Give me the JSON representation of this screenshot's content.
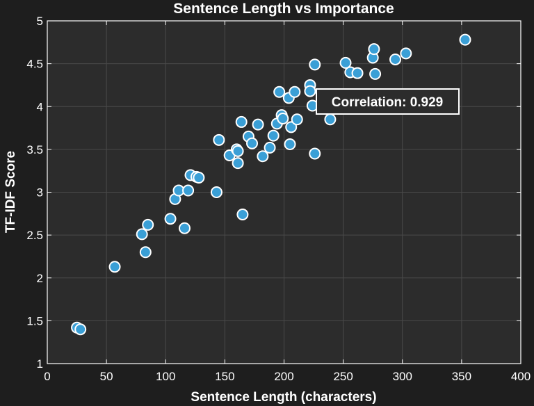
{
  "chart_data": {
    "type": "scatter",
    "title": "Sentence Length vs Importance",
    "xlabel": "Sentence Length (characters)",
    "ylabel": "TF-IDF Score",
    "xlim": [
      0,
      400
    ],
    "ylim": [
      1,
      5
    ],
    "xticks": [
      0,
      50,
      100,
      150,
      200,
      250,
      300,
      350,
      400
    ],
    "xtick_labels": [
      "0",
      "50",
      "100",
      "150",
      "200",
      "250",
      "300",
      "350",
      "400"
    ],
    "yticks": [
      1,
      1.5,
      2,
      2.5,
      3,
      3.5,
      4,
      4.5,
      5
    ],
    "ytick_labels": [
      "1",
      "1.5",
      "2",
      "2.5",
      "3",
      "3.5",
      "4",
      "4.5",
      "5"
    ],
    "grid": true,
    "annotation": "Correlation: 0.929",
    "colors": {
      "background": "#1e1e1e",
      "plot_background": "#2c2c2c",
      "grid": "#4a4a4a",
      "marker_fill": "#3a9fd6",
      "marker_edge": "#ffffff",
      "text": "#ffffff",
      "annotation_box": "#2c2c2c"
    },
    "points": [
      {
        "x": 25,
        "y": 1.42
      },
      {
        "x": 28,
        "y": 1.4
      },
      {
        "x": 57,
        "y": 2.13
      },
      {
        "x": 80,
        "y": 2.51
      },
      {
        "x": 83,
        "y": 2.3
      },
      {
        "x": 85,
        "y": 2.62
      },
      {
        "x": 104,
        "y": 2.69
      },
      {
        "x": 108,
        "y": 2.92
      },
      {
        "x": 111,
        "y": 3.02
      },
      {
        "x": 116,
        "y": 2.58
      },
      {
        "x": 119,
        "y": 3.02
      },
      {
        "x": 121,
        "y": 3.2
      },
      {
        "x": 126,
        "y": 3.18
      },
      {
        "x": 128,
        "y": 3.17
      },
      {
        "x": 143,
        "y": 3.0
      },
      {
        "x": 145,
        "y": 3.61
      },
      {
        "x": 154,
        "y": 3.43
      },
      {
        "x": 160,
        "y": 3.5
      },
      {
        "x": 161,
        "y": 3.34
      },
      {
        "x": 161,
        "y": 3.48
      },
      {
        "x": 164,
        "y": 3.82
      },
      {
        "x": 165,
        "y": 2.74
      },
      {
        "x": 170,
        "y": 3.65
      },
      {
        "x": 173,
        "y": 3.57
      },
      {
        "x": 178,
        "y": 3.79
      },
      {
        "x": 182,
        "y": 3.42
      },
      {
        "x": 188,
        "y": 3.52
      },
      {
        "x": 191,
        "y": 3.66
      },
      {
        "x": 194,
        "y": 3.8
      },
      {
        "x": 196,
        "y": 4.17
      },
      {
        "x": 198,
        "y": 3.9
      },
      {
        "x": 199,
        "y": 3.86
      },
      {
        "x": 204,
        "y": 4.1
      },
      {
        "x": 205,
        "y": 3.56
      },
      {
        "x": 206,
        "y": 3.76
      },
      {
        "x": 209,
        "y": 4.17
      },
      {
        "x": 211,
        "y": 3.85
      },
      {
        "x": 222,
        "y": 4.25
      },
      {
        "x": 222,
        "y": 4.18
      },
      {
        "x": 224,
        "y": 4.01
      },
      {
        "x": 226,
        "y": 4.49
      },
      {
        "x": 226,
        "y": 3.45
      },
      {
        "x": 239,
        "y": 3.85
      },
      {
        "x": 252,
        "y": 4.51
      },
      {
        "x": 256,
        "y": 4.4
      },
      {
        "x": 262,
        "y": 4.39
      },
      {
        "x": 275,
        "y": 4.57
      },
      {
        "x": 276,
        "y": 4.67
      },
      {
        "x": 277,
        "y": 4.38
      },
      {
        "x": 294,
        "y": 4.55
      },
      {
        "x": 303,
        "y": 4.62
      },
      {
        "x": 353,
        "y": 4.78
      }
    ]
  }
}
